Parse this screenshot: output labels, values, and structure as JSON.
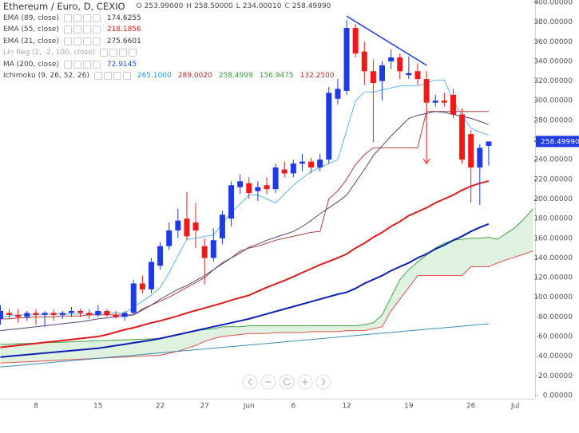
{
  "chart_data": {
    "type": "candlestick",
    "title": "Ethereum / Euro, D, CEXIO",
    "ohlc_labels": [
      {
        "key": "O",
        "value": "253.99000"
      },
      {
        "key": "H",
        "value": "258.50000"
      },
      {
        "key": "L",
        "value": "234.00010"
      },
      {
        "key": "C",
        "value": "258.49990"
      }
    ],
    "categories": [
      null,
      null,
      null,
      null,
      "8",
      null,
      null,
      null,
      null,
      null,
      null,
      "15",
      null,
      null,
      null,
      null,
      null,
      null,
      "22",
      null,
      null,
      null,
      null,
      "27",
      null,
      null,
      null,
      null,
      "Jun",
      null,
      null,
      null,
      null,
      "6",
      null,
      null,
      null,
      null,
      null,
      "12",
      null,
      null,
      null,
      null,
      null,
      null,
      "19",
      null,
      null,
      null,
      null,
      null,
      null,
      "26",
      null,
      null,
      null,
      null,
      "Jul",
      null,
      null
    ],
    "open": [
      78,
      84,
      82,
      80,
      84,
      82,
      84,
      82,
      84,
      86,
      84,
      82,
      86,
      82,
      80,
      84,
      114,
      108,
      132,
      152,
      168,
      180,
      176,
      152,
      140,
      160,
      180,
      212,
      216,
      208,
      214,
      210,
      230,
      226,
      236,
      238,
      232,
      240,
      302,
      310,
      374,
      350,
      330,
      320,
      340,
      344,
      326,
      330,
      322,
      298,
      300,
      306,
      286,
      266,
      232,
      253.99,
      null,
      null,
      null,
      null,
      null
    ],
    "high": [
      92,
      88,
      88,
      86,
      88,
      86,
      88,
      86,
      90,
      88,
      88,
      92,
      88,
      86,
      86,
      118,
      122,
      140,
      156,
      176,
      190,
      207,
      196,
      160,
      170,
      188,
      218,
      225,
      222,
      218,
      222,
      236,
      238,
      240,
      246,
      242,
      246,
      314,
      322,
      382,
      378,
      360,
      342,
      340,
      352,
      348,
      345,
      338,
      330,
      306,
      308,
      312,
      292,
      270,
      256,
      258.5,
      null,
      null,
      null,
      null,
      null
    ],
    "low": [
      72,
      78,
      74,
      76,
      72,
      70,
      76,
      78,
      80,
      80,
      78,
      80,
      80,
      78,
      76,
      82,
      104,
      104,
      128,
      148,
      160,
      158,
      150,
      113,
      136,
      154,
      172,
      205,
      200,
      198,
      205,
      206,
      222,
      222,
      228,
      226,
      228,
      236,
      296,
      306,
      344,
      316,
      258,
      300,
      332,
      322,
      322,
      316,
      270,
      294,
      294,
      282,
      236,
      196,
      194,
      234.0001,
      null,
      null,
      null,
      null,
      null
    ],
    "close": [
      86,
      82,
      80,
      84,
      82,
      84,
      82,
      84,
      86,
      84,
      82,
      86,
      82,
      80,
      84,
      114,
      108,
      136,
      152,
      168,
      178,
      162,
      168,
      140,
      158,
      184,
      214,
      218,
      206,
      212,
      210,
      232,
      226,
      236,
      238,
      232,
      240,
      308,
      312,
      374,
      348,
      330,
      318,
      336,
      344,
      330,
      328,
      322,
      298,
      300,
      298,
      286,
      240,
      232,
      252,
      258.4999,
      null,
      null,
      null,
      null,
      null
    ],
    "up_color": "#1e3ae6",
    "down_color": "#f01818",
    "ylim": [
      -3.25,
      402.43
    ],
    "yticks": [
      {
        "value": 0,
        "label": "0.00000"
      },
      {
        "value": 20,
        "label": "20.00000"
      },
      {
        "value": 40,
        "label": "40.00000"
      },
      {
        "value": 60,
        "label": "60.00000"
      },
      {
        "value": 80,
        "label": "80.00000"
      },
      {
        "value": 100,
        "label": "100.00000"
      },
      {
        "value": 120,
        "label": "120.00000"
      },
      {
        "value": 140,
        "label": "140.00000"
      },
      {
        "value": 160,
        "label": "160.00000"
      },
      {
        "value": 180,
        "label": "180.00000"
      },
      {
        "value": 200,
        "label": "200.00000"
      },
      {
        "value": 220,
        "label": "220.00000"
      },
      {
        "value": 240,
        "label": "240.00000"
      },
      {
        "value": 260,
        "label": "260.00000"
      },
      {
        "value": 280,
        "label": "280.00000"
      },
      {
        "value": 300,
        "label": "300.00000"
      },
      {
        "value": 320,
        "label": "320.00000"
      },
      {
        "value": 340,
        "label": "340.00000"
      },
      {
        "value": 360,
        "label": "360.00000"
      },
      {
        "value": 380,
        "label": "380.00000"
      },
      {
        "value": 400,
        "label": "400.00000"
      }
    ],
    "last_price": {
      "value": 258.4999,
      "label": "258.49990",
      "color": "#1e3ae6"
    },
    "indicators": [
      {
        "kind": "line",
        "name": "EMA (89, close)",
        "value_label": "174.6255",
        "color": "#0d1fb5",
        "label_color": "#333",
        "width": 2,
        "values": [
          39,
          40,
          40.8,
          41.6,
          42.4,
          43.2,
          44,
          44.8,
          45.6,
          46.4,
          47.2,
          48,
          49.4,
          50.8,
          52.2,
          53.6,
          55,
          56.4,
          58,
          60,
          62,
          64,
          66,
          68,
          70,
          72,
          74,
          76,
          78,
          80.5,
          83,
          85.5,
          88,
          90.5,
          93,
          95.5,
          98,
          100.5,
          103,
          105,
          109,
          114,
          118,
          122,
          127,
          131,
          135,
          140,
          144,
          149,
          153,
          158,
          162,
          167,
          171,
          174.6255,
          null,
          null,
          null,
          null,
          null
        ]
      },
      {
        "kind": "line",
        "name": "EMA (55, close)",
        "value_label": "218.1856",
        "color": "#e01b1b",
        "label_color": "#e01b1b",
        "width": 2,
        "values": [
          49,
          50,
          51,
          52,
          53,
          54,
          55,
          56,
          57,
          58,
          59,
          60,
          62,
          64.5,
          67,
          69,
          71.5,
          74,
          76,
          78.5,
          81,
          84,
          86.5,
          89,
          91.5,
          94,
          97,
          99.5,
          102,
          106,
          110,
          113.5,
          117,
          121,
          125,
          129,
          133,
          136.5,
          140,
          144,
          150,
          155,
          161,
          166,
          172,
          177,
          183,
          187,
          191,
          196,
          200,
          204,
          209,
          213,
          216,
          218.1856,
          null,
          null,
          null,
          null,
          null
        ]
      },
      {
        "kind": "line",
        "name": "EMA (21, close)",
        "value_label": "275.6601",
        "color": "#55427e",
        "label_color": "#333",
        "width": 1,
        "values": [
          66,
          67,
          68,
          69,
          70,
          71,
          72,
          73,
          74,
          75,
          76.5,
          78,
          79,
          80,
          81,
          82,
          87,
          92,
          98,
          103,
          108,
          112,
          117,
          122,
          128,
          134,
          140,
          145,
          151,
          154,
          158,
          161,
          164,
          167,
          172,
          178,
          185,
          191,
          197,
          204,
          217,
          230,
          244,
          254,
          264,
          273,
          282,
          285,
          287,
          289,
          288,
          286,
          284,
          282,
          279,
          275.6601,
          null,
          null,
          null,
          null,
          null
        ]
      },
      {
        "kind": "hidden",
        "name": "Lin Reg (2, -2, 100, close)"
      },
      {
        "kind": "line",
        "name": "MA (200, close)",
        "value_label": "72.9145",
        "color": "#3a8fb5",
        "label_color": "#1e4fd0",
        "width": 1,
        "values": [
          29,
          29.8,
          30.6,
          31.4,
          32.2,
          33,
          33.8,
          34.6,
          35.4,
          36.2,
          37,
          37.8,
          38.6,
          39.4,
          40.2,
          41,
          41.8,
          42.6,
          43.4,
          44.2,
          45,
          45.8,
          46.6,
          47.4,
          48.2,
          49,
          49.8,
          50.6,
          51.4,
          52.2,
          53,
          53.8,
          54.6,
          55.4,
          56.2,
          57,
          57.8,
          58.6,
          59.4,
          60.2,
          61,
          61.8,
          62.6,
          63.4,
          64.2,
          65,
          65.8,
          66.6,
          67.4,
          68.2,
          69,
          69.8,
          70.6,
          71.4,
          72.2,
          72.9145,
          null,
          null,
          null,
          null,
          null
        ]
      },
      {
        "kind": "ichimoku",
        "name": "Ichimoku (9, 26, 52, 26)",
        "labels": [
          {
            "text": "265.1000",
            "color": "#2a8fd8"
          },
          {
            "text": "289.0020",
            "color": "#b03030"
          },
          {
            "text": "258.4999",
            "color": "#3c9a3c"
          },
          {
            "text": "156.9475",
            "color": "#3c9a3c"
          },
          {
            "text": "132.2500",
            "color": "#c53030"
          }
        ],
        "cloud_color": "#4caf50",
        "lines": [
          {
            "color": "#5bb8ea",
            "values": [
              80,
              81,
              82,
              82,
              82,
              83,
              83,
              83,
              83,
              83,
              83,
              84,
              84,
              84,
              84,
              90,
              96,
              102,
              110,
              125,
              142,
              159,
              160,
              162,
              163,
              175,
              186,
              195,
              204,
              204,
              200,
              196,
              205,
              214,
              221,
              228,
              232,
              236,
              240,
              270,
              300,
              309,
              309,
              311,
              313,
              315,
              315,
              315,
              318,
              321,
              321,
              300,
              285,
              272,
              268,
              265.1,
              null,
              null,
              null,
              null,
              null
            ]
          },
          {
            "color": "#a8403a",
            "values": [
              78,
              78,
              79,
              79,
              80,
              80,
              80,
              81,
              81,
              81,
              82,
              82,
              82,
              82,
              82,
              82,
              88,
              92,
              96,
              100,
              105,
              110,
              115,
              120,
              128,
              135,
              140,
              147,
              150,
              152,
              155,
              158,
              160,
              162,
              164,
              166,
              167,
              200,
              208,
              220,
              235,
              245,
              252,
              252,
              252,
              252,
              252,
              252,
              289,
              289,
              289,
              289,
              289,
              289,
              289,
              289.002,
              null,
              null,
              null,
              null,
              null
            ]
          },
          {
            "color": "#43a047",
            "values": [
              52,
              52.3,
              52.7,
              53,
              53.3,
              53.7,
              54,
              54.3,
              54.7,
              55,
              55.3,
              55.7,
              56,
              56.3,
              56.7,
              57,
              57.3,
              57.7,
              58,
              60,
              62,
              64,
              66,
              67,
              68,
              70,
              70,
              70,
              71,
              71,
              71,
              71,
              71,
              71,
              71,
              71,
              71,
              71,
              71,
              71,
              71,
              72,
              74,
              82,
              100,
              118,
              128,
              136,
              143,
              150,
              155,
              158,
              159,
              160,
              160,
              161,
              159,
              165,
              171,
              180,
              190
            ]
          },
          {
            "color": "#e05050",
            "values": [
              33,
              33.4,
              33.9,
              34.3,
              34.8,
              35.2,
              35.7,
              36.1,
              36.6,
              37,
              37.4,
              37.9,
              38.3,
              38.8,
              39.2,
              39.7,
              40.1,
              40.6,
              41,
              43,
              45,
              48,
              51,
              55,
              58,
              60,
              61,
              62,
              63,
              63,
              63,
              64,
              64,
              64,
              64,
              65,
              65,
              65,
              65,
              66,
              66,
              66,
              68,
              70,
              86,
              98,
              110,
              122,
              122,
              122,
              122,
              122,
              122,
              131,
              131,
              131,
              135,
              138,
              141,
              144,
              147
            ]
          }
        ]
      }
    ],
    "trendline": {
      "x": [
        39,
        48
      ],
      "y": [
        386,
        336
      ],
      "color": "#1e3ae6"
    },
    "arrow": {
      "x": 48,
      "y": [
        301,
        236
      ],
      "color": "#e53935"
    }
  }
}
